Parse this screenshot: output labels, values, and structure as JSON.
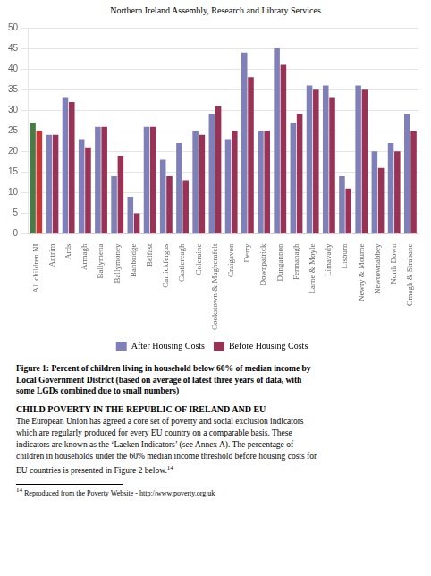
{
  "chart_data": {
    "type": "bar",
    "title": "Figure 1: Percent of children living in household below 60% of median income by\nLocal Government District (based on average of latest three years of data, with\nsome LGDs combined due to small numbers)",
    "annotations": [
      "Northern Ireland Assembly, Research and Library Services",
      "CHILD POVERTY IN THE REPUBLIC OF IRELAND AND EU",
      "The European Union has agreed a core set of poverty and social exclusion indicators",
      "which are regularly produced for every EU country on a comparable basis.  These",
      "indicators are known as the ‘Laeken Indicators’ (see Annex A).   The percentage of",
      "children in households under the 60% median income threshold before housing costs for",
      "EU countries is presented in Figure 2 below.",
      "14",
      "14",
      "Reproduced from the Poverty Website - http://www.poverty.org.uk"
    ],
    "categories": [
      "All children NI",
      "Antrim",
      "Ards",
      "Armagh",
      "Ballymena",
      "Ballymoney",
      "Banbridge",
      "Belfast",
      "Carrickfergus",
      "Castlereagh",
      "Coleraine",
      "Cookstown & Magherafelt",
      "Craigavon",
      "Derry",
      "Downpatrick",
      "Dungannon",
      "Fermanagh",
      "Larne & Moyle",
      "Limavady",
      "Lisburn",
      "Newry & Mourne",
      "Newtownabbey",
      "North Down",
      "Omagh & Strabane"
    ],
    "series": [
      {
        "name": "After Housing Costs",
        "color": "#8080b8",
        "colors": [
          "#4a7a4a",
          "#8080b8",
          "#8080b8",
          "#8080b8",
          "#8080b8",
          "#8080b8",
          "#8080b8",
          "#8080b8",
          "#8080b8",
          "#8080b8",
          "#8080b8",
          "#8080b8",
          "#8080b8",
          "#8080b8",
          "#8080b8",
          "#8080b8",
          "#8080b8",
          "#8080b8",
          "#8080b8",
          "#8080b8",
          "#8080b8",
          "#8080b8",
          "#8080b8",
          "#8080b8"
        ],
        "values": [
          27,
          24,
          33,
          23,
          26,
          14,
          9,
          26,
          18,
          22,
          25,
          29,
          23,
          44,
          25,
          45,
          27,
          36,
          36,
          14,
          36,
          20,
          22,
          29
        ]
      },
      {
        "name": "Before Housing Costs",
        "color": "#993355",
        "colors": [
          "#cc3333",
          "#993355",
          "#993355",
          "#993355",
          "#993355",
          "#993355",
          "#993355",
          "#993355",
          "#993355",
          "#993355",
          "#993355",
          "#993355",
          "#993355",
          "#993355",
          "#993355",
          "#993355",
          "#993355",
          "#993355",
          "#993355",
          "#993355",
          "#993355",
          "#993355",
          "#993355",
          "#993355"
        ],
        "values": [
          25,
          24,
          32,
          21,
          26,
          19,
          5,
          26,
          14,
          13,
          24,
          31,
          25,
          38,
          25,
          41,
          29,
          35,
          33,
          11,
          35,
          16,
          20,
          25
        ]
      }
    ],
    "ylim": [
      0,
      50
    ],
    "yticks": [
      0,
      5,
      10,
      15,
      20,
      25,
      30,
      35,
      40,
      45,
      50
    ],
    "grid": true,
    "legend": "bottom"
  }
}
